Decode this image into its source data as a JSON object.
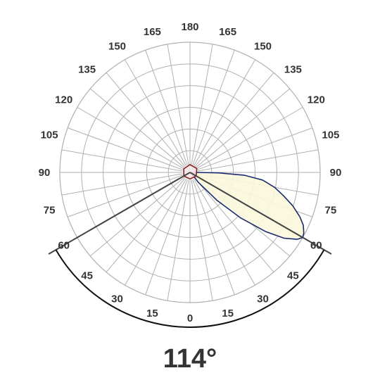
{
  "chart_data": {
    "type": "polar",
    "title": "",
    "beam_angle_label": "114°",
    "beam_angle_deg": 114,
    "angle_tick_labels": {
      "left": [
        "0",
        "15",
        "30",
        "45",
        "60",
        "75",
        "90",
        "105",
        "120",
        "135",
        "150",
        "165",
        "180"
      ],
      "right": [
        "15",
        "30",
        "45",
        "60",
        "75",
        "90",
        "105",
        "120",
        "135",
        "150",
        "165"
      ]
    },
    "angle_ticks_deg": [
      0,
      15,
      30,
      45,
      60,
      75,
      90,
      105,
      120,
      135,
      150,
      165,
      180
    ],
    "grid": {
      "rings": 6,
      "spokes_every_deg": 10
    },
    "series": [
      {
        "color": "#1c2a6e",
        "fill": "#faf7dc",
        "points": [
          {
            "angle": 60,
            "value": 1.0
          },
          {
            "angle": 62,
            "value": 0.99
          },
          {
            "angle": 65,
            "value": 0.96
          },
          {
            "angle": 68,
            "value": 0.91
          },
          {
            "angle": 72,
            "value": 0.83
          },
          {
            "angle": 76,
            "value": 0.74
          },
          {
            "angle": 80,
            "value": 0.66
          },
          {
            "angle": 84,
            "value": 0.56
          },
          {
            "angle": 87,
            "value": 0.42
          },
          {
            "angle": 89,
            "value": 0.22
          },
          {
            "angle": 90,
            "value": 0.04
          },
          {
            "angle": 80,
            "value": 0.02
          },
          {
            "angle": 60,
            "value": 0.02
          },
          {
            "angle": 45,
            "value": 0.03
          },
          {
            "angle": 40,
            "value": 0.1
          },
          {
            "angle": 44,
            "value": 0.3
          },
          {
            "angle": 48,
            "value": 0.52
          },
          {
            "angle": 52,
            "value": 0.74
          },
          {
            "angle": 55,
            "value": 0.88
          },
          {
            "angle": 58,
            "value": 0.97
          }
        ]
      },
      {
        "color": "#8b1a1a",
        "fill": "#f4e4e4",
        "points": [
          {
            "angle": 0,
            "value": 0.05
          },
          {
            "angle": 60,
            "value": 0.055
          },
          {
            "angle": 120,
            "value": 0.06
          },
          {
            "angle": 180,
            "value": 0.06
          },
          {
            "angle": 240,
            "value": 0.055
          },
          {
            "angle": 300,
            "value": 0.055
          }
        ]
      }
    ],
    "beam_lines_deg": [
      -60,
      60
    ]
  },
  "colors": {
    "grid": "#b0b0b0",
    "beam_line": "#444444",
    "text": "#333333"
  }
}
